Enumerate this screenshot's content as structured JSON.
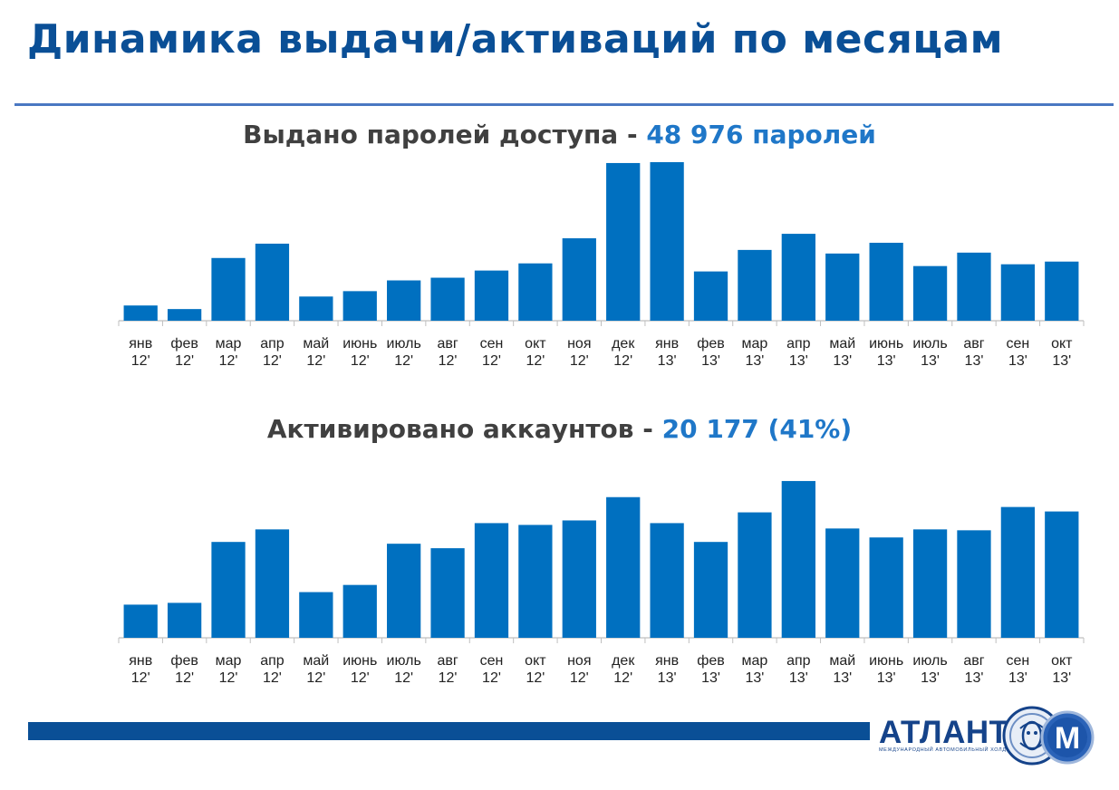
{
  "page": {
    "title": "Динамика выдачи/активаций по месяцам"
  },
  "colors": {
    "title": "#0a4f96",
    "bar": "#0070c0",
    "accent": "#1f77c8",
    "footer": "#0a4f96"
  },
  "logo": {
    "word": "АТЛАНТ",
    "tagline": "МЕЖДУНАРОДНЫЙ АВТОМОБИЛЬНЫЙ ХОЛДИНГ",
    "emblem": "atlant-m-emblem-icon"
  },
  "chart_data": [
    {
      "type": "bar",
      "title": "Выдано паролей доступа - ",
      "title_highlight": "48 976 паролей",
      "categories": [
        "янв 12'",
        "фев 12'",
        "мар 12'",
        "апр 12'",
        "май 12'",
        "июнь 12'",
        "июль 12'",
        "авг 12'",
        "сен 12'",
        "окт 12'",
        "ноя 12'",
        "дек 12'",
        "янв 13'",
        "фев 13'",
        "мар 13'",
        "апр 13'",
        "май 13'",
        "июнь 13'",
        "июль 13'",
        "авг 13'",
        "сен 13'",
        "окт 13'"
      ],
      "category_months": [
        "янв",
        "фев",
        "мар",
        "апр",
        "май",
        "июнь",
        "июль",
        "авг",
        "сен",
        "окт",
        "ноя",
        "дек",
        "янв",
        "фев",
        "мар",
        "апр",
        "май",
        "июнь",
        "июль",
        "авг",
        "сен",
        "окт"
      ],
      "category_years": [
        "12'",
        "12'",
        "12'",
        "12'",
        "12'",
        "12'",
        "12'",
        "12'",
        "12'",
        "12'",
        "12'",
        "12'",
        "13'",
        "13'",
        "13'",
        "13'",
        "13'",
        "13'",
        "13'",
        "13'",
        "13'",
        "13'"
      ],
      "values": [
        17,
        13,
        70,
        86,
        27,
        33,
        45,
        48,
        56,
        64,
        92,
        176,
        177,
        55,
        79,
        97,
        75,
        87,
        61,
        76,
        63,
        66
      ],
      "ylim": [
        0,
        180
      ],
      "yaxis_visible": false,
      "grid": false
    },
    {
      "type": "bar",
      "title": "Активировано аккаунтов - ",
      "title_highlight": "20 177 (41%)",
      "categories": [
        "янв 12'",
        "фев 12'",
        "мар 12'",
        "апр 12'",
        "май 12'",
        "июнь 12'",
        "июль 12'",
        "авг 12'",
        "сен 12'",
        "окт 12'",
        "ноя 12'",
        "дек 12'",
        "янв 13'",
        "фев 13'",
        "мар 13'",
        "апр 13'",
        "май 13'",
        "июнь 13'",
        "июль 13'",
        "авг 13'",
        "сен 13'",
        "окт 13'"
      ],
      "category_months": [
        "янв",
        "фев",
        "мар",
        "апр",
        "май",
        "июнь",
        "июль",
        "авг",
        "сен",
        "окт",
        "ноя",
        "дек",
        "янв",
        "фев",
        "мар",
        "апр",
        "май",
        "июнь",
        "июль",
        "авг",
        "сен",
        "окт"
      ],
      "category_years": [
        "12'",
        "12'",
        "12'",
        "12'",
        "12'",
        "12'",
        "12'",
        "12'",
        "12'",
        "12'",
        "12'",
        "12'",
        "13'",
        "13'",
        "13'",
        "13'",
        "13'",
        "13'",
        "13'",
        "13'",
        "13'",
        "13'"
      ],
      "values": [
        37,
        39,
        107,
        121,
        51,
        59,
        105,
        100,
        128,
        126,
        131,
        157,
        128,
        107,
        140,
        175,
        122,
        112,
        121,
        120,
        146,
        141
      ],
      "ylim": [
        0,
        180
      ],
      "yaxis_visible": false,
      "grid": false
    }
  ]
}
